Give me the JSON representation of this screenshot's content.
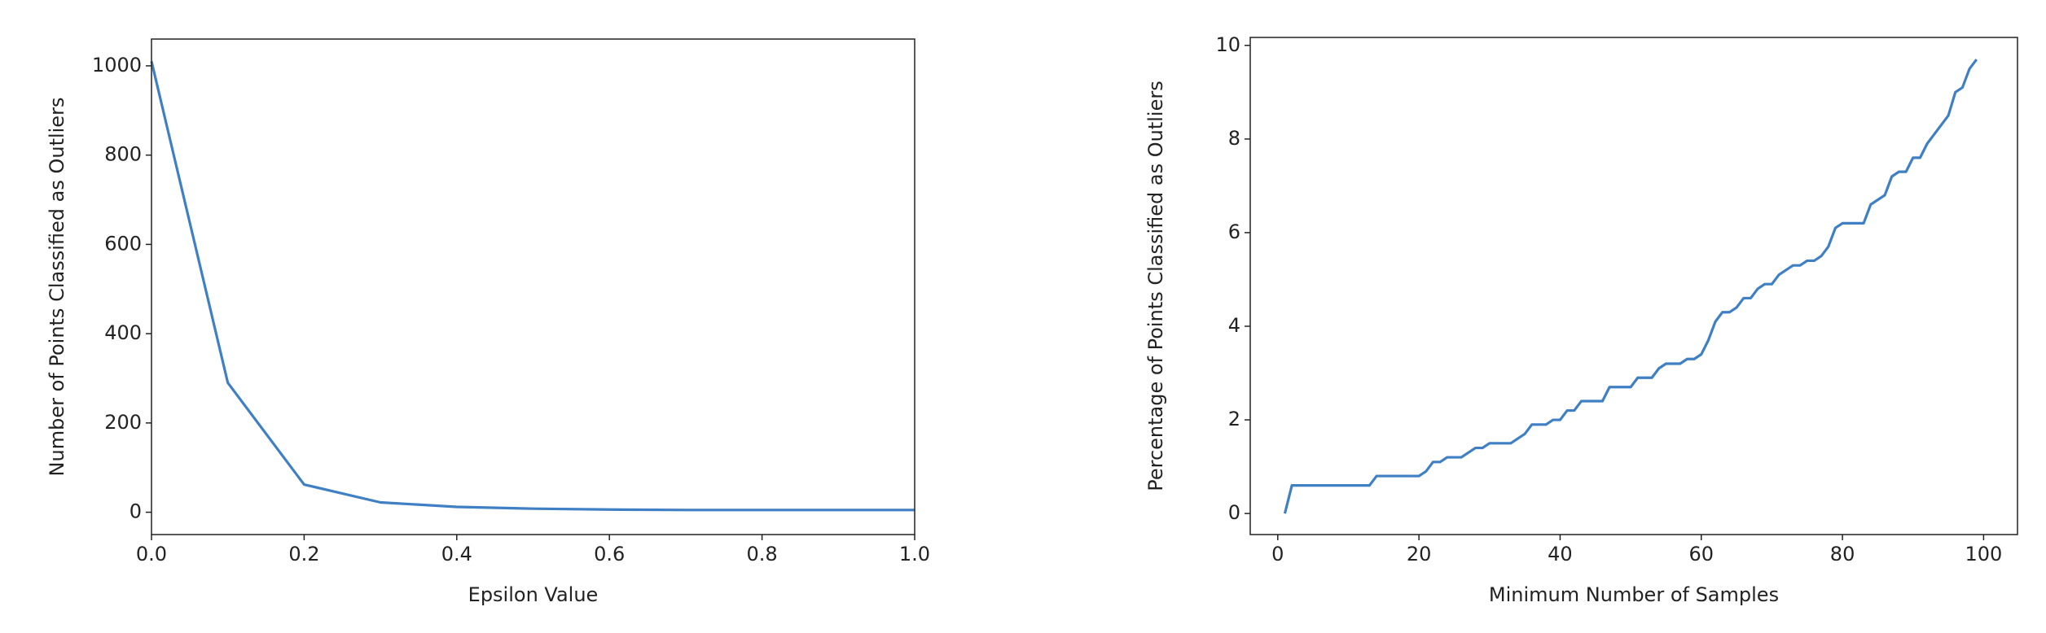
{
  "chart_data": [
    {
      "type": "line",
      "x_label": "Epsilon Value",
      "y_label": "Number of Points Classified as Outliers",
      "x": [
        0,
        0.1,
        0.2,
        0.3,
        0.4,
        0.5,
        0.6,
        0.7,
        0.8,
        0.9,
        1.0
      ],
      "series": [
        {
          "color": "#3f7fc4",
          "values": [
            1010,
            290,
            62,
            22,
            12,
            8,
            6,
            5,
            5,
            5,
            5
          ]
        }
      ],
      "xlim": [
        0,
        1
      ],
      "ylim": [
        -50,
        1060
      ],
      "xticks": [
        {
          "value": 0,
          "label": "0.0"
        },
        0.2,
        0.4,
        0.6,
        0.8,
        {
          "value": 1,
          "label": "1.0"
        }
      ],
      "yticks": [
        0,
        200,
        400,
        600,
        800,
        1000
      ],
      "grid": false
    },
    {
      "type": "line",
      "x_label": "Minimum Number of Samples",
      "y_label": "Percentage of Points Classified as Outliers",
      "x": [
        1,
        2,
        3,
        4,
        5,
        6,
        7,
        8,
        9,
        10,
        11,
        12,
        13,
        14,
        15,
        16,
        17,
        18,
        19,
        20,
        21,
        22,
        23,
        24,
        25,
        26,
        27,
        28,
        29,
        30,
        31,
        32,
        33,
        34,
        35,
        36,
        37,
        38,
        39,
        40,
        41,
        42,
        43,
        44,
        45,
        46,
        47,
        48,
        49,
        50,
        51,
        52,
        53,
        54,
        55,
        56,
        57,
        58,
        59,
        60,
        61,
        62,
        63,
        64,
        65,
        66,
        67,
        68,
        69,
        70,
        71,
        72,
        73,
        74,
        75,
        76,
        77,
        78,
        79,
        80,
        81,
        82,
        83,
        84,
        85,
        86,
        87,
        88,
        89,
        90,
        91,
        92,
        93,
        94,
        95,
        96,
        97,
        98,
        99
      ],
      "series": [
        {
          "color": "#3f7fc4",
          "values": [
            0.0,
            0.6,
            0.6,
            0.6,
            0.6,
            0.6,
            0.6,
            0.6,
            0.6,
            0.6,
            0.6,
            0.6,
            0.6,
            0.8,
            0.8,
            0.8,
            0.8,
            0.8,
            0.8,
            0.8,
            0.9,
            1.1,
            1.1,
            1.2,
            1.2,
            1.2,
            1.3,
            1.4,
            1.4,
            1.5,
            1.5,
            1.5,
            1.5,
            1.6,
            1.7,
            1.9,
            1.9,
            1.9,
            2.0,
            2.0,
            2.2,
            2.2,
            2.4,
            2.4,
            2.4,
            2.4,
            2.7,
            2.7,
            2.7,
            2.7,
            2.9,
            2.9,
            2.9,
            3.1,
            3.2,
            3.2,
            3.2,
            3.3,
            3.3,
            3.4,
            3.7,
            4.1,
            4.3,
            4.3,
            4.4,
            4.6,
            4.6,
            4.8,
            4.9,
            4.9,
            5.1,
            5.2,
            5.3,
            5.3,
            5.4,
            5.4,
            5.5,
            5.7,
            6.1,
            6.2,
            6.2,
            6.2,
            6.2,
            6.6,
            6.7,
            6.8,
            7.2,
            7.3,
            7.3,
            7.6,
            7.6,
            7.9,
            8.1,
            8.3,
            8.5,
            9.0,
            9.1,
            9.5,
            9.7
          ]
        }
      ],
      "xlim": [
        -3.9,
        104.8
      ],
      "ylim": [
        -0.45,
        10.17
      ],
      "xticks": [
        0,
        20,
        40,
        60,
        80,
        100
      ],
      "yticks": [
        0,
        2,
        4,
        6,
        8,
        10
      ],
      "grid": false
    }
  ]
}
